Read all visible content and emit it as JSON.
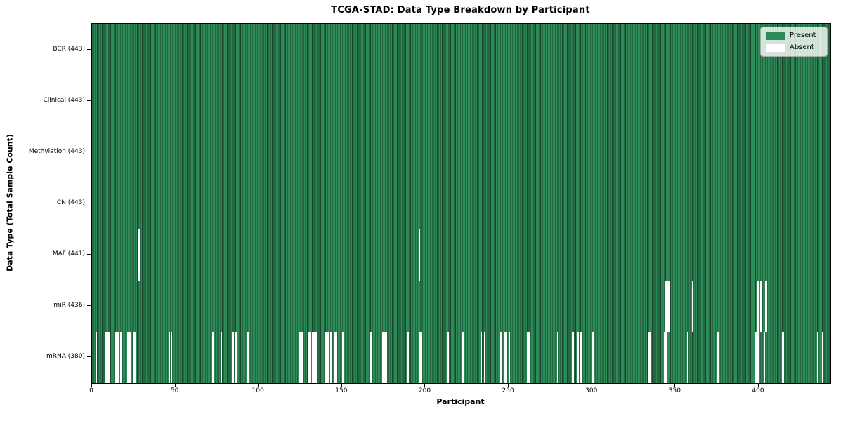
{
  "title": "TCGA-STAD: Data Type Breakdown by Participant",
  "xlabel": "Participant",
  "ylabel": "Data Type (Total Sample Count)",
  "legend": {
    "present_label": "Present",
    "absent_label": "Absent"
  },
  "colors": {
    "present_fill": "#2e8b57",
    "present_edge": "#17452c",
    "absent_fill": "#ffffff",
    "row_divider": "#0d0d0d",
    "axis": "#000000"
  },
  "chart_data": {
    "type": "heatmap",
    "title": "TCGA-STAD: Data Type Breakdown by Participant",
    "xlabel": "Participant",
    "ylabel": "Data Type (Total Sample Count)",
    "legend_entries": [
      "Present",
      "Absent"
    ],
    "legend_position": "upper right",
    "grid": false,
    "n_participants": 443,
    "x_axis": {
      "ticks": [
        0,
        50,
        100,
        150,
        200,
        250,
        300,
        350,
        400
      ],
      "range": [
        0,
        443
      ]
    },
    "rows": [
      {
        "name": "BCR",
        "label": "BCR (443)",
        "present_count": 443,
        "absent_participants": []
      },
      {
        "name": "Clinical",
        "label": "Clinical (443)",
        "present_count": 443,
        "absent_participants": []
      },
      {
        "name": "Methylation",
        "label": "Methylation (443)",
        "present_count": 443,
        "absent_participants": []
      },
      {
        "name": "CN",
        "label": "CN (443)",
        "present_count": 443,
        "absent_participants": []
      },
      {
        "name": "MAF",
        "label": "MAF (441)",
        "present_count": 441,
        "absent_participants": [
          28,
          196
        ]
      },
      {
        "name": "miR",
        "label": "miR (436)",
        "present_count": 436,
        "absent_participants": [
          344,
          345,
          346,
          360,
          399,
          401,
          404
        ]
      },
      {
        "name": "mRNA",
        "label": "mRNA (380)",
        "present_count": 380,
        "absent_participants": [
          2,
          8,
          9,
          10,
          14,
          15,
          17,
          21,
          22,
          25,
          46,
          47,
          72,
          77,
          84,
          86,
          93,
          124,
          125,
          126,
          130,
          132,
          133,
          134,
          140,
          141,
          143,
          145,
          146,
          150,
          167,
          174,
          175,
          176,
          189,
          196,
          197,
          213,
          222,
          233,
          235,
          245,
          247,
          248,
          250,
          261,
          262,
          279,
          288,
          291,
          293,
          300,
          334,
          343,
          344,
          357,
          375,
          398,
          399,
          403,
          414,
          435,
          438
        ]
      }
    ]
  }
}
